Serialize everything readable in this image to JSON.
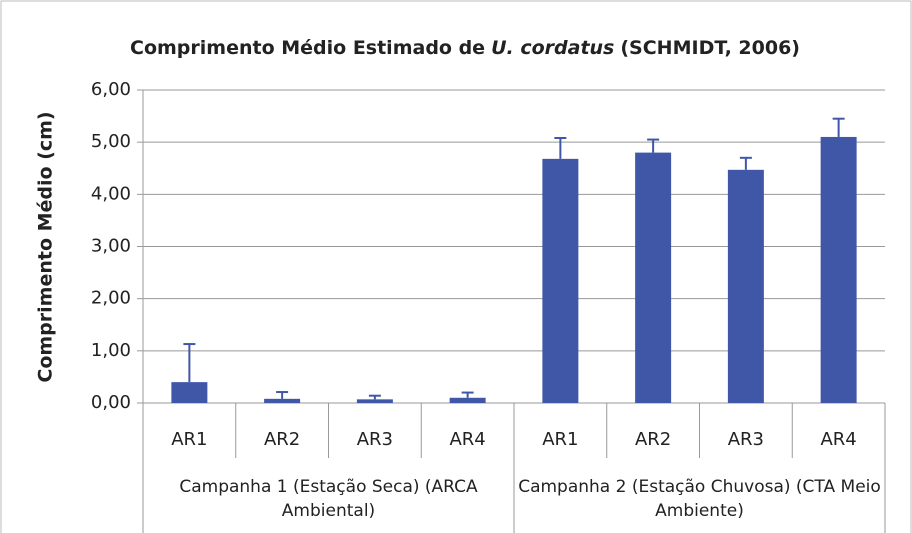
{
  "chart_data": {
    "type": "bar",
    "title": [
      "Comprimento Médio Estimado de",
      "U. cordatus",
      "(SCHMIDT, 2006)"
    ],
    "y_label": "Comprimento Médio (cm)",
    "categories": [
      "AR1",
      "AR2",
      "AR3",
      "AR4",
      "AR1",
      "AR2",
      "AR3",
      "AR4"
    ],
    "groups": [
      "Campanha 1 (Estação Seca) (ARCA Ambiental)",
      "Campanha 2 (Estação Chuvosa) (CTA Meio Ambiente)"
    ],
    "values": [
      0.4,
      0.08,
      0.07,
      0.1,
      4.68,
      4.8,
      4.47,
      5.1
    ],
    "errors": [
      0.73,
      0.13,
      0.07,
      0.1,
      0.4,
      0.25,
      0.23,
      0.35
    ],
    "color": "#4057a8",
    "ylim": [
      0,
      6
    ],
    "yticks": [
      {
        "value": 0,
        "label": "0,00"
      },
      {
        "value": 1,
        "label": "1,00"
      },
      {
        "value": 2,
        "label": "2,00"
      },
      {
        "value": 3,
        "label": "3,00"
      },
      {
        "value": 4,
        "label": "4,00"
      },
      {
        "value": 5,
        "label": "5,00"
      },
      {
        "value": 6,
        "label": "6,00"
      }
    ],
    "grid": true
  }
}
